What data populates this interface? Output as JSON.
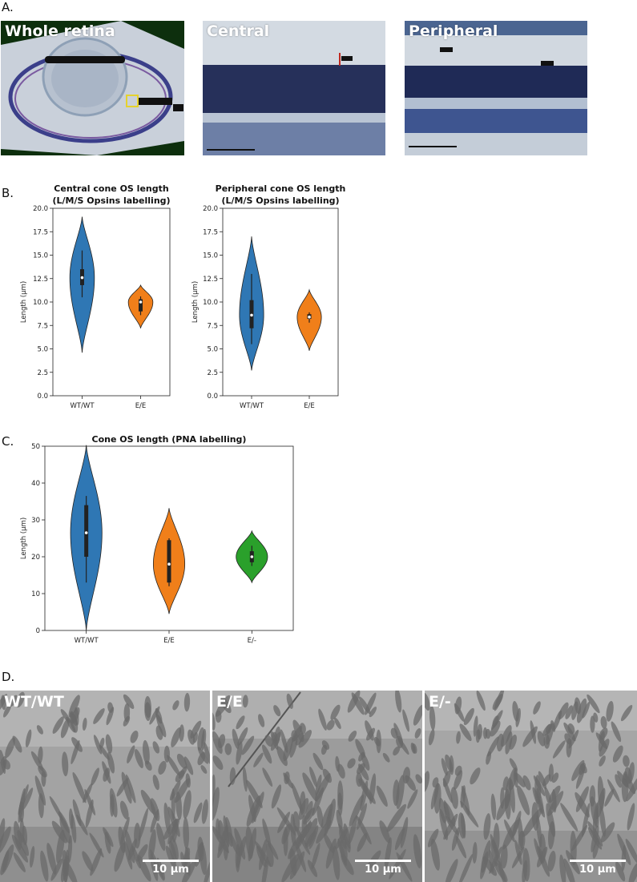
{
  "panels": {
    "a": {
      "letter": "A.",
      "images": [
        {
          "title": "Whole retina"
        },
        {
          "title": "Central"
        },
        {
          "title": "Peripheral"
        }
      ]
    },
    "b": {
      "letter": "B."
    },
    "c": {
      "letter": "C."
    },
    "d": {
      "letter": "D.",
      "images": [
        {
          "title": "WT/WT",
          "scale": "10 µm"
        },
        {
          "title": "E/E",
          "scale": "10 µm"
        },
        {
          "title": "E/-",
          "scale": "10 µm"
        }
      ]
    }
  },
  "colors": {
    "wt": "#2f77b4",
    "ee": "#f07f1a",
    "eminus": "#2aa02b",
    "micro_bg": "#c6ced8",
    "em_bg": "#a3a3a3"
  },
  "chart_data": [
    {
      "type": "violin",
      "title": "Central cone OS length\n(L/M/S Opsins labelling)",
      "ylabel": "Length (μm)",
      "ylim": [
        0,
        20
      ],
      "yticks": [
        "0.0",
        "2.5",
        "5.0",
        "7.5",
        "10.0",
        "12.5",
        "15.0",
        "17.5",
        "20.0"
      ],
      "categories": [
        "WT/WT",
        "E/E"
      ],
      "series": [
        {
          "min": 4.6,
          "q1": 11.8,
          "median": 12.6,
          "q3": 13.5,
          "max": 19.1,
          "whisker_low": 10.5,
          "whisker_high": 15.5
        },
        {
          "min": 7.2,
          "q1": 9.0,
          "median": 10.0,
          "q3": 10.3,
          "max": 11.8,
          "whisker_low": 8.6,
          "whisker_high": 10.6
        }
      ]
    },
    {
      "type": "violin",
      "title": "Peripheral cone OS length\n(L/M/S Opsins labelling)",
      "ylabel": "Length (μm)",
      "ylim": [
        0,
        20
      ],
      "yticks": [
        "0.0",
        "2.5",
        "5.0",
        "7.5",
        "10.0",
        "12.5",
        "15.0",
        "17.5",
        "20.0"
      ],
      "categories": [
        "WT/WT",
        "E/E"
      ],
      "series": [
        {
          "min": 2.7,
          "q1": 7.2,
          "median": 8.6,
          "q3": 10.2,
          "max": 17.0,
          "whisker_low": 5.5,
          "whisker_high": 13.0
        },
        {
          "min": 4.8,
          "q1": 8.2,
          "median": 8.4,
          "q3": 8.7,
          "max": 11.3,
          "whisker_low": 7.8,
          "whisker_high": 8.9
        }
      ]
    },
    {
      "type": "violin",
      "title": "Cone OS length (PNA labelling)",
      "ylabel": "Length (μm)",
      "ylim": [
        0,
        50
      ],
      "yticks": [
        "0",
        "10",
        "20",
        "30",
        "40",
        "50"
      ],
      "categories": [
        "WT/WT",
        "E/E",
        "E/-"
      ],
      "series": [
        {
          "min": 0,
          "q1": 20,
          "median": 26.5,
          "q3": 34,
          "max": 50.3,
          "whisker_low": 13,
          "whisker_high": 36.5
        },
        {
          "min": 4.5,
          "q1": 13,
          "median": 18,
          "q3": 24.5,
          "max": 33.2,
          "whisker_low": 12,
          "whisker_high": 25
        },
        {
          "min": 13,
          "q1": 18.5,
          "median": 20,
          "q3": 21.5,
          "max": 27,
          "whisker_low": 17.5,
          "whisker_high": 23
        }
      ]
    }
  ]
}
